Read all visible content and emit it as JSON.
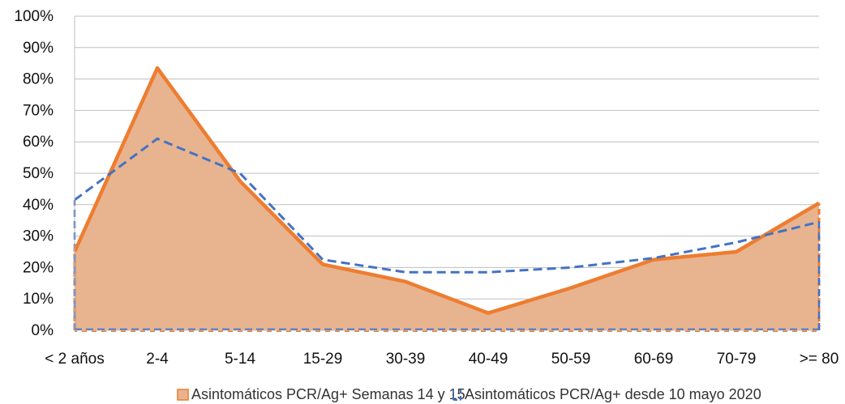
{
  "chart_data": {
    "type": "area",
    "categories": [
      "< 2 años",
      "2-4",
      "5-14",
      "15-29",
      "30-39",
      "40-49",
      "50-59",
      "60-69",
      "70-79",
      ">= 80"
    ],
    "series": [
      {
        "name": "Asintomáticos PCR/Ag+ Semanas 14 y 15",
        "values": [
          25,
          83.5,
          47.5,
          21,
          15.5,
          5.5,
          13.5,
          22.5,
          25,
          40.5
        ],
        "color": "#ED7D31",
        "fill": "#E8B48F",
        "style": "solid-area"
      },
      {
        "name": "Asintomáticos PCR/Ag+ desde 10 mayo 2020",
        "values": [
          41.5,
          61,
          50,
          22.5,
          18.5,
          18.5,
          20,
          23,
          28,
          34.5
        ],
        "color": "#4472C4",
        "style": "dashed-area"
      }
    ],
    "y_ticks": [
      "0%",
      "10%",
      "20%",
      "30%",
      "40%",
      "50%",
      "60%",
      "70%",
      "80%",
      "90%",
      "100%"
    ],
    "ylim": [
      0,
      100
    ],
    "grid": true,
    "legend_position": "bottom"
  }
}
